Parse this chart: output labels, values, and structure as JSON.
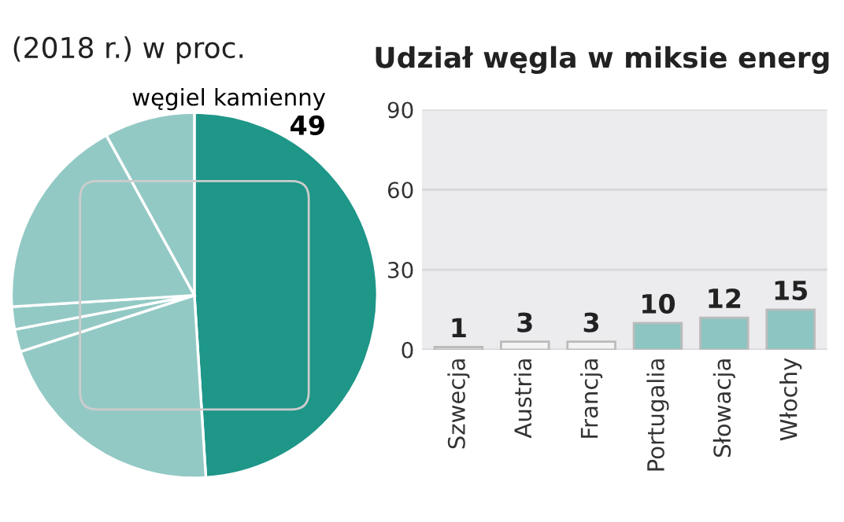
{
  "chart_data": [
    {
      "type": "pie",
      "title": "(2018 r.) w proc.",
      "categories": [
        "węgiel kamienny",
        null,
        null,
        null,
        null,
        null
      ],
      "values": [
        49,
        21,
        2,
        2,
        18,
        8
      ],
      "colors": [
        "#1e9688",
        "#93c9c5",
        "#93c9c5",
        "#93c9c5",
        "#93c9c5",
        "#93c9c5"
      ],
      "value_labels": [
        "49",
        null,
        null,
        null,
        null,
        null
      ]
    },
    {
      "type": "bar",
      "title": "Udział węgla w miksie energ",
      "categories": [
        "Szwecja",
        "Austria",
        "Francja",
        "Portugalia",
        "Słowacja",
        "Włochy"
      ],
      "values": [
        1,
        3,
        3,
        10,
        12,
        15
      ],
      "colors": [
        "#f4f4f4",
        "#f4f4f4",
        "#f4f4f4",
        "#8cc5c1",
        "#8cc5c1",
        "#8cc5c1"
      ],
      "ylim": [
        0,
        90
      ],
      "yticks": [
        0,
        30,
        60,
        90
      ],
      "grid": "y",
      "data_labels": true
    }
  ]
}
